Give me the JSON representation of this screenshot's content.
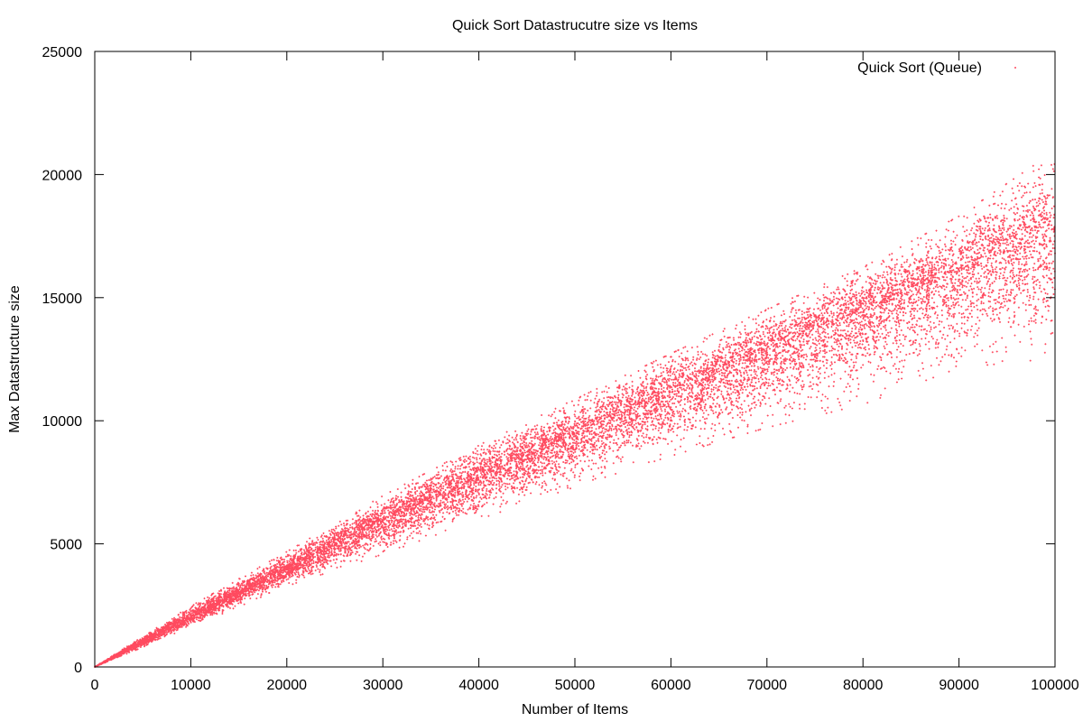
{
  "chart_data": {
    "type": "scatter",
    "title": "Quick Sort Datastrucutre size vs Items",
    "xlabel": "Number of Items",
    "ylabel": "Max Datastructure size",
    "xlim": [
      0,
      100000
    ],
    "ylim": [
      0,
      25000
    ],
    "xticks": [
      0,
      10000,
      20000,
      30000,
      40000,
      50000,
      60000,
      70000,
      80000,
      90000,
      100000
    ],
    "yticks": [
      0,
      5000,
      10000,
      15000,
      20000,
      25000
    ],
    "grid": false,
    "legend_position": "top-right",
    "series": [
      {
        "name": "Quick Sort (Queue)",
        "color": "#ff4a5f",
        "trend": {
          "x": [
            0,
            10000,
            20000,
            30000,
            40000,
            50000,
            60000,
            70000,
            80000,
            90000,
            100000
          ],
          "y_center": [
            0,
            2050,
            4000,
            5900,
            7650,
            9400,
            11100,
            12750,
            14400,
            16000,
            17600
          ],
          "y_upper": [
            0,
            2450,
            4650,
            6900,
            8950,
            10800,
            12650,
            14450,
            16150,
            18200,
            20800
          ],
          "y_lower": [
            0,
            1650,
            3350,
            4700,
            6150,
            7500,
            8800,
            10000,
            11000,
            12500,
            13000
          ]
        }
      }
    ]
  }
}
